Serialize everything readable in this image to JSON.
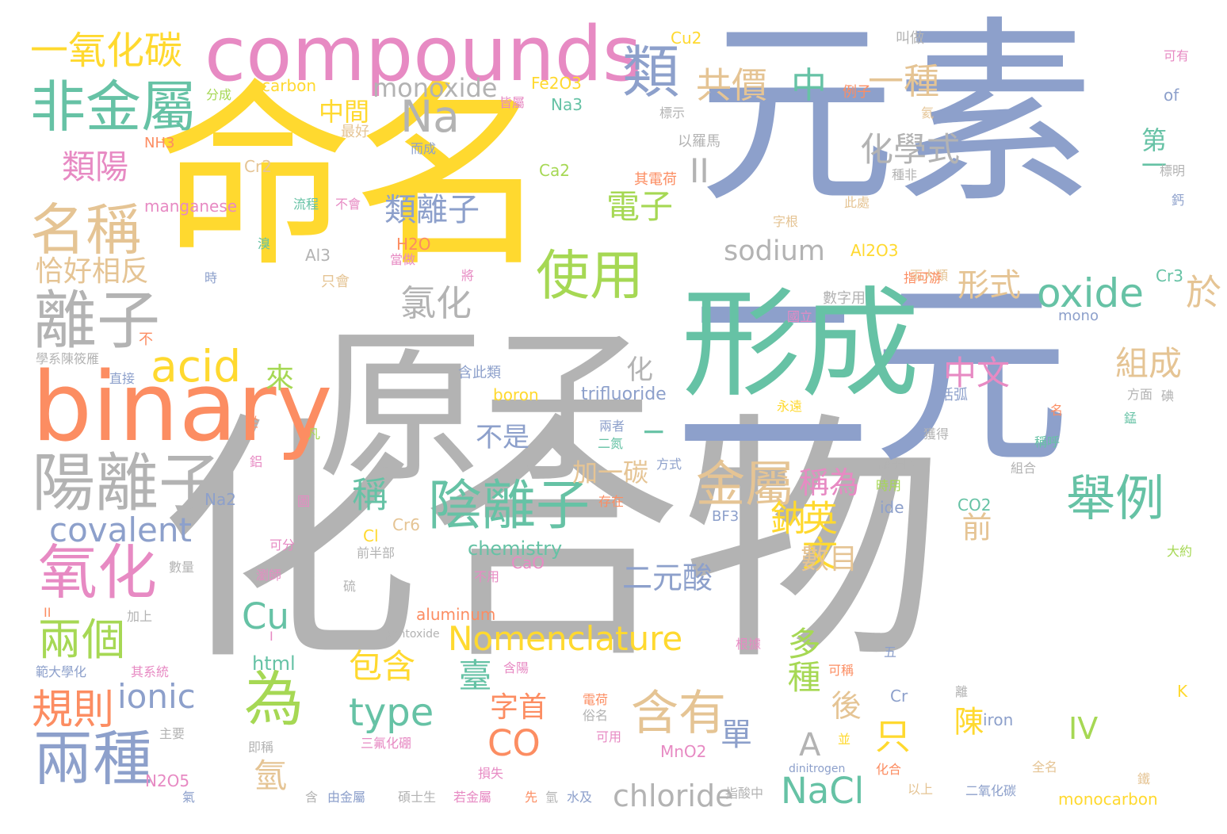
{
  "palette": {
    "yellow": "#ffd92f",
    "blue": "#8da0cb",
    "gray": "#b3b3b3",
    "green": "#66c2a5",
    "orange": "#fc8d62",
    "pink": "#e78ac3",
    "lime": "#a6d854",
    "tan": "#e5c494"
  },
  "words": [
    {
      "t": "命名",
      "c": "yellow"
    },
    {
      "t": "元素",
      "c": "blue"
    },
    {
      "t": "化合物",
      "c": "gray"
    },
    {
      "t": "二元",
      "c": "blue"
    },
    {
      "t": "形成",
      "c": "green"
    },
    {
      "t": "原子",
      "c": "gray"
    },
    {
      "t": "binary",
      "c": "orange"
    },
    {
      "t": "compounds",
      "c": "pink"
    },
    {
      "t": "陽離子",
      "c": "gray"
    },
    {
      "t": "離子",
      "c": "gray"
    },
    {
      "t": "名稱",
      "c": "tan"
    },
    {
      "t": "非金屬",
      "c": "green"
    },
    {
      "t": "一氧化碳",
      "c": "yellow"
    },
    {
      "t": "類",
      "c": "blue"
    },
    {
      "t": "使用",
      "c": "lime"
    },
    {
      "t": "陰離子",
      "c": "green"
    },
    {
      "t": "為",
      "c": "lime"
    },
    {
      "t": "兩種",
      "c": "blue"
    },
    {
      "t": "氧化",
      "c": "pink"
    },
    {
      "t": "acid",
      "c": "yellow"
    },
    {
      "t": "Na",
      "c": "gray"
    },
    {
      "t": "金屬",
      "c": "tan"
    },
    {
      "t": "舉例",
      "c": "green"
    },
    {
      "t": "含有",
      "c": "tan"
    },
    {
      "t": "兩個",
      "c": "lime"
    },
    {
      "t": "規則",
      "c": "orange"
    },
    {
      "t": "oxide",
      "c": "green"
    },
    {
      "t": "共價",
      "c": "tan"
    },
    {
      "t": "中",
      "c": "green"
    },
    {
      "t": "一種",
      "c": "tan"
    },
    {
      "t": "類陽",
      "c": "pink"
    },
    {
      "t": "化學式",
      "c": "gray"
    },
    {
      "t": "組成",
      "c": "tan"
    },
    {
      "t": "中文",
      "c": "pink"
    },
    {
      "t": "形式",
      "c": "tan"
    },
    {
      "t": "氯化",
      "c": "gray"
    },
    {
      "t": "類離子",
      "c": "blue"
    },
    {
      "t": "電子",
      "c": "lime"
    },
    {
      "t": "covalent",
      "c": "blue"
    },
    {
      "t": "ionic",
      "c": "blue"
    },
    {
      "t": "Nomenclature",
      "c": "yellow"
    },
    {
      "t": "NaCl",
      "c": "green"
    },
    {
      "t": "CO",
      "c": "orange"
    },
    {
      "t": "type",
      "c": "green"
    },
    {
      "t": "Cu",
      "c": "green"
    },
    {
      "t": "chloride",
      "c": "gray"
    },
    {
      "t": "sodium",
      "c": "gray"
    },
    {
      "t": "monoxide",
      "c": "gray"
    },
    {
      "t": "恰好相反",
      "c": "tan"
    },
    {
      "t": "稱為",
      "c": "pink"
    },
    {
      "t": "英文",
      "c": "yellow"
    },
    {
      "t": "鈉",
      "c": "yellow"
    },
    {
      "t": "稱",
      "c": "green"
    },
    {
      "t": "多種",
      "c": "lime"
    },
    {
      "t": "包含",
      "c": "yellow"
    },
    {
      "t": "臺",
      "c": "green"
    },
    {
      "t": "二元酸",
      "c": "blue"
    },
    {
      "t": "數目",
      "c": "tan"
    },
    {
      "t": "只",
      "c": "yellow"
    },
    {
      "t": "氫",
      "c": "tan"
    },
    {
      "t": "第一",
      "c": "green"
    },
    {
      "t": "於",
      "c": "tan"
    },
    {
      "t": "中間",
      "c": "yellow"
    },
    {
      "t": "字首",
      "c": "orange"
    },
    {
      "t": "單",
      "c": "blue"
    },
    {
      "t": "後",
      "c": "tan"
    },
    {
      "t": "前",
      "c": "tan"
    },
    {
      "t": "陳",
      "c": "yellow"
    },
    {
      "t": "IV",
      "c": "lime"
    },
    {
      "t": "A",
      "c": "gray"
    },
    {
      "t": "不是",
      "c": "blue"
    },
    {
      "t": "加一碳",
      "c": "tan"
    },
    {
      "t": "來",
      "c": "lime"
    },
    {
      "t": "化",
      "c": "gray"
    },
    {
      "t": "II",
      "c": "gray"
    },
    {
      "t": "I",
      "c": "green"
    },
    {
      "t": "chemistry",
      "c": "green"
    },
    {
      "t": "trifluoride",
      "c": "blue"
    },
    {
      "t": "html",
      "c": "green"
    },
    {
      "t": "Cu2",
      "c": "yellow"
    },
    {
      "t": "carbon",
      "c": "yellow"
    },
    {
      "t": "Fe2O3",
      "c": "yellow"
    },
    {
      "t": "Na3",
      "c": "green"
    },
    {
      "t": "Cr2",
      "c": "tan"
    },
    {
      "t": "Ca2",
      "c": "lime"
    },
    {
      "t": "NH3",
      "c": "orange"
    },
    {
      "t": "manganese",
      "c": "pink"
    },
    {
      "t": "H2O",
      "c": "orange"
    },
    {
      "t": "Al3",
      "c": "gray"
    },
    {
      "t": "Al2O3",
      "c": "yellow"
    },
    {
      "t": "Cr3",
      "c": "green"
    },
    {
      "t": "mono",
      "c": "blue"
    },
    {
      "t": "boron",
      "c": "yellow"
    },
    {
      "t": "CO2",
      "c": "green"
    },
    {
      "t": "BF3",
      "c": "blue"
    },
    {
      "t": "ide",
      "c": "blue"
    },
    {
      "t": "Cr6",
      "c": "tan"
    },
    {
      "t": "Cl",
      "c": "yellow"
    },
    {
      "t": "CaO",
      "c": "pink"
    },
    {
      "t": "Na2",
      "c": "blue"
    },
    {
      "t": "aluminum",
      "c": "orange"
    },
    {
      "t": "pentoxide",
      "c": "gray"
    },
    {
      "t": "Cr",
      "c": "blue"
    },
    {
      "t": "iron",
      "c": "blue"
    },
    {
      "t": "MnO2",
      "c": "pink"
    },
    {
      "t": "dinitrogen",
      "c": "blue"
    },
    {
      "t": "monocarbon",
      "c": "yellow"
    },
    {
      "t": "N2O5",
      "c": "pink"
    },
    {
      "t": "of",
      "c": "blue"
    },
    {
      "t": "K",
      "c": "yellow"
    },
    {
      "t": "叫做",
      "c": "gray"
    },
    {
      "t": "可有",
      "c": "pink"
    },
    {
      "t": "分成",
      "c": "lime"
    },
    {
      "t": "皆屬",
      "c": "pink"
    },
    {
      "t": "最好",
      "c": "tan"
    },
    {
      "t": "而成",
      "c": "blue"
    },
    {
      "t": "例子",
      "c": "orange"
    },
    {
      "t": "標示",
      "c": "gray"
    },
    {
      "t": "氦",
      "c": "tan"
    },
    {
      "t": "標明",
      "c": "gray"
    },
    {
      "t": "以羅馬",
      "c": "gray"
    },
    {
      "t": "其電荷",
      "c": "orange"
    },
    {
      "t": "種非",
      "c": "gray"
    },
    {
      "t": "鈣",
      "c": "blue"
    },
    {
      "t": "流程",
      "c": "green"
    },
    {
      "t": "不會",
      "c": "pink"
    },
    {
      "t": "此處",
      "c": "tan"
    },
    {
      "t": "字根",
      "c": "tan"
    },
    {
      "t": "溴",
      "c": "green"
    },
    {
      "t": "當做",
      "c": "pink"
    },
    {
      "t": "兩大類",
      "c": "tan"
    },
    {
      "t": "時",
      "c": "blue"
    },
    {
      "t": "只會",
      "c": "tan"
    },
    {
      "t": "將",
      "c": "pink"
    },
    {
      "t": "指可游",
      "c": "orange"
    },
    {
      "t": "數字用",
      "c": "gray"
    },
    {
      "t": "國立",
      "c": "pink"
    },
    {
      "t": "不",
      "c": "orange"
    },
    {
      "t": "學系陳筱雁",
      "c": "gray"
    },
    {
      "t": "含此類",
      "c": "blue"
    },
    {
      "t": "直接",
      "c": "blue"
    },
    {
      "t": "括弧",
      "c": "blue"
    },
    {
      "t": "方面",
      "c": "gray"
    },
    {
      "t": "碘",
      "c": "gray"
    },
    {
      "t": "永遠",
      "c": "yellow"
    },
    {
      "t": "名",
      "c": "orange"
    },
    {
      "t": "錳",
      "c": "green"
    },
    {
      "t": "從",
      "c": "orange"
    },
    {
      "t": "凡",
      "c": "lime"
    },
    {
      "t": "兩者",
      "c": "blue"
    },
    {
      "t": "二氮",
      "c": "green"
    },
    {
      "t": "獲得",
      "c": "gray"
    },
    {
      "t": "稱呼",
      "c": "green"
    },
    {
      "t": "鋁",
      "c": "pink"
    },
    {
      "t": "方式",
      "c": "blue"
    },
    {
      "t": "離子區",
      "c": "gray"
    },
    {
      "t": "組合",
      "c": "gray"
    },
    {
      "t": "時用",
      "c": "lime"
    },
    {
      "t": "圖",
      "c": "pink"
    },
    {
      "t": "存在",
      "c": "orange"
    },
    {
      "t": "可分",
      "c": "pink"
    },
    {
      "t": "前半部",
      "c": "gray"
    },
    {
      "t": "大約",
      "c": "lime"
    },
    {
      "t": "數量",
      "c": "gray"
    },
    {
      "t": "瀏師",
      "c": "pink"
    },
    {
      "t": "不用",
      "c": "pink"
    },
    {
      "t": "硫",
      "c": "gray"
    },
    {
      "t": "加上",
      "c": "gray"
    },
    {
      "t": "根據",
      "c": "pink"
    },
    {
      "t": "五",
      "c": "blue"
    },
    {
      "t": "範大學化",
      "c": "blue"
    },
    {
      "t": "其系統",
      "c": "pink"
    },
    {
      "t": "含陽",
      "c": "pink"
    },
    {
      "t": "可稱",
      "c": "orange"
    },
    {
      "t": "主要",
      "c": "gray"
    },
    {
      "t": "電荷",
      "c": "orange"
    },
    {
      "t": "俗名",
      "c": "gray"
    },
    {
      "t": "可用",
      "c": "pink"
    },
    {
      "t": "離",
      "c": "gray"
    },
    {
      "t": "即稱",
      "c": "gray"
    },
    {
      "t": "三氟化硼",
      "c": "pink"
    },
    {
      "t": "並",
      "c": "yellow"
    },
    {
      "t": "全名",
      "c": "tan"
    },
    {
      "t": "化合",
      "c": "orange"
    },
    {
      "t": "以上",
      "c": "tan"
    },
    {
      "t": "鐵",
      "c": "tan"
    },
    {
      "t": "損失",
      "c": "pink"
    },
    {
      "t": "氣",
      "c": "blue"
    },
    {
      "t": "含",
      "c": "gray"
    },
    {
      "t": "由金屬",
      "c": "blue"
    },
    {
      "t": "碩士生",
      "c": "gray"
    },
    {
      "t": "若金屬",
      "c": "pink"
    },
    {
      "t": "先",
      "c": "orange"
    },
    {
      "t": "氫",
      "c": "gray"
    },
    {
      "t": "水及",
      "c": "blue"
    },
    {
      "t": "指酸中",
      "c": "gray"
    },
    {
      "t": "二氧化碳",
      "c": "blue"
    },
    {
      "t": "II",
      "c": "orange"
    },
    {
      "t": "I",
      "c": "pink"
    }
  ]
}
